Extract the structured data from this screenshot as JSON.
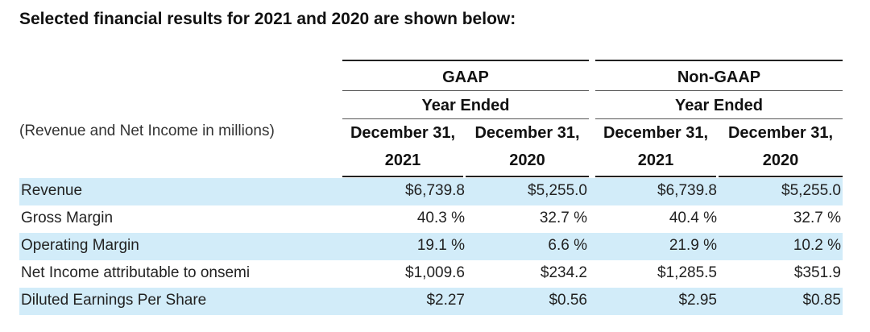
{
  "title": "Selected financial results for 2021 and 2020 are shown below:",
  "groups": [
    {
      "name": "GAAP",
      "subheading": "Year Ended"
    },
    {
      "name": "Non-GAAP",
      "subheading": "Year Ended"
    }
  ],
  "caption": "(Revenue and Net Income in millions)",
  "columns": [
    {
      "line1": "December 31,",
      "line2": "2021"
    },
    {
      "line1": "December 31,",
      "line2": "2020"
    },
    {
      "line1": "December 31,",
      "line2": "2021"
    },
    {
      "line1": "December 31,",
      "line2": "2020"
    }
  ],
  "rows": [
    {
      "label": "Revenue",
      "values": [
        "$6,739.8",
        "$5,255.0",
        "$6,739.8",
        "$5,255.0"
      ]
    },
    {
      "label": "Gross Margin",
      "values": [
        "40.3 %",
        "32.7 %",
        "40.4 %",
        "32.7 %"
      ]
    },
    {
      "label": "Operating Margin",
      "values": [
        "19.1 %",
        "6.6 %",
        "21.9 %",
        "10.2 %"
      ]
    },
    {
      "label": "Net Income attributable to onsemi",
      "values": [
        "$1,009.6",
        "$234.2",
        "$1,285.5",
        "$351.9"
      ]
    },
    {
      "label": "Diluted Earnings Per Share",
      "values": [
        "$2.27",
        "$0.56",
        "$2.95",
        "$0.85"
      ]
    }
  ],
  "colors": {
    "row_shade": "#d2ecf9",
    "rule": "#222222"
  }
}
